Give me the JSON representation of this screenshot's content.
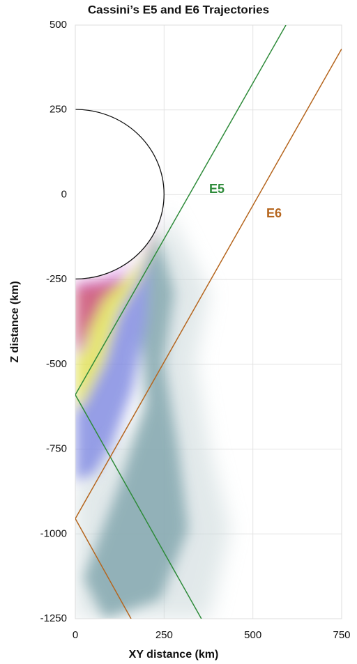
{
  "chart_data": {
    "type": "line",
    "title": "Cassini’s E5 and E6 Trajectories",
    "xlabel": "XY distance (km)",
    "ylabel": "Z distance (km)",
    "series": [
      {
        "name": "E5",
        "color": "#2e8b3a",
        "x": [
          355,
          0,
          593
        ],
        "values": [
          -1250,
          -590,
          500
        ]
      },
      {
        "name": "E6",
        "color": "#b5651d",
        "x": [
          157,
          0,
          750
        ],
        "values": [
          -1250,
          -955,
          430
        ]
      }
    ],
    "xlim": [
      0,
      750
    ],
    "xticks": [
      0,
      250,
      500,
      750
    ],
    "ylim": [
      -1250,
      500
    ],
    "yticks": [
      500,
      250,
      0,
      -250,
      -500,
      -750,
      -1000,
      -1250
    ],
    "grid": true
  }
}
